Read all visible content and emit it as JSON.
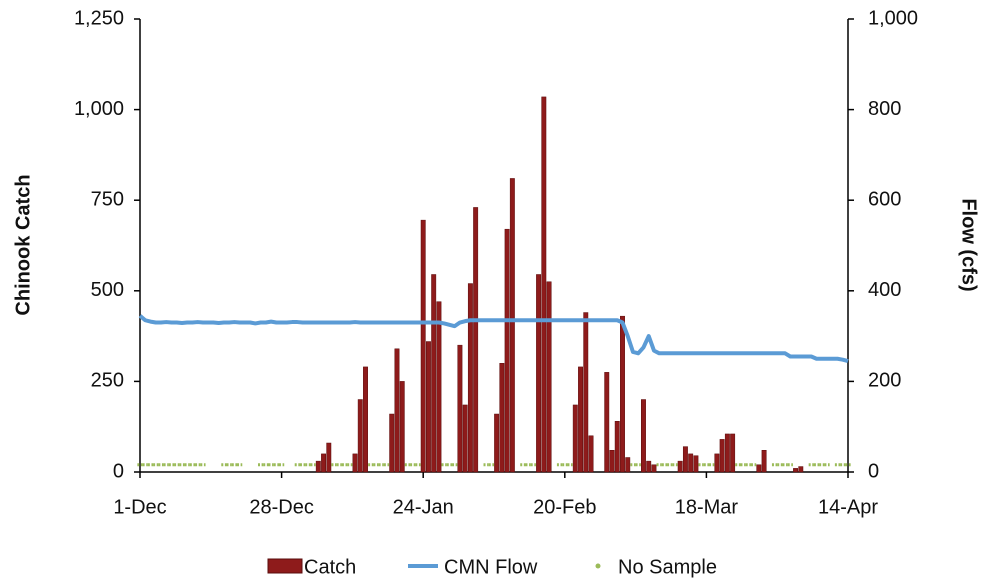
{
  "chart_data": {
    "type": "bar",
    "y_label": "Chinook Catch",
    "y2_label": "Flow (cfs)",
    "categories": [
      "1-Dec",
      null,
      null,
      null,
      null,
      null,
      null,
      null,
      null,
      null,
      null,
      null,
      null,
      null,
      null,
      null,
      null,
      null,
      null,
      null,
      null,
      null,
      null,
      null,
      null,
      null,
      null,
      "28-Dec",
      null,
      null,
      null,
      null,
      null,
      null,
      null,
      null,
      null,
      null,
      null,
      null,
      null,
      null,
      null,
      null,
      null,
      null,
      null,
      null,
      null,
      null,
      null,
      null,
      null,
      null,
      "24-Jan",
      null,
      null,
      null,
      null,
      null,
      null,
      null,
      null,
      null,
      null,
      null,
      null,
      null,
      null,
      null,
      null,
      null,
      null,
      null,
      null,
      null,
      null,
      null,
      null,
      null,
      null,
      "20-Feb",
      null,
      null,
      null,
      null,
      null,
      null,
      null,
      null,
      null,
      null,
      null,
      null,
      null,
      null,
      null,
      null,
      null,
      null,
      null,
      null,
      null,
      null,
      null,
      null,
      null,
      null,
      "18-Mar",
      null,
      null,
      null,
      null,
      null,
      null,
      null,
      null,
      null,
      null,
      null,
      null,
      null,
      null,
      null,
      null,
      null,
      null,
      null,
      null,
      null,
      null,
      null,
      null,
      null,
      null,
      "14-Apr"
    ],
    "series": [
      {
        "name": "Catch",
        "type": "bar",
        "color": "#8e1b1b",
        "values": [
          0,
          0,
          0,
          0,
          0,
          0,
          0,
          0,
          0,
          0,
          0,
          0,
          0,
          0,
          0,
          0,
          0,
          0,
          0,
          0,
          0,
          0,
          0,
          0,
          0,
          0,
          0,
          0,
          0,
          0,
          0,
          0,
          0,
          0,
          30,
          50,
          80,
          0,
          0,
          0,
          0,
          50,
          200,
          290,
          0,
          0,
          0,
          0,
          160,
          340,
          250,
          0,
          0,
          0,
          695,
          360,
          545,
          470,
          0,
          0,
          0,
          350,
          185,
          520,
          730,
          0,
          0,
          0,
          160,
          300,
          670,
          810,
          0,
          0,
          0,
          0,
          545,
          1035,
          525,
          0,
          0,
          0,
          0,
          185,
          290,
          440,
          100,
          0,
          0,
          275,
          60,
          140,
          430,
          40,
          0,
          0,
          200,
          30,
          20,
          0,
          0,
          0,
          0,
          30,
          70,
          50,
          45,
          0,
          0,
          0,
          50,
          90,
          105,
          105,
          0,
          0,
          0,
          0,
          20,
          60,
          0,
          0,
          0,
          0,
          0,
          10,
          15,
          0,
          0,
          0,
          0,
          0,
          0,
          0,
          0,
          0
        ]
      },
      {
        "name": "CMN Flow",
        "type": "line",
        "axis": "y2",
        "color": "#5b9bd5",
        "values": [
          345,
          335,
          332,
          330,
          330,
          331,
          330,
          330,
          329,
          330,
          330,
          331,
          330,
          330,
          330,
          329,
          330,
          330,
          331,
          330,
          330,
          330,
          328,
          330,
          330,
          332,
          330,
          330,
          330,
          331,
          331,
          330,
          330,
          330,
          330,
          330,
          330,
          330,
          330,
          330,
          330,
          331,
          330,
          330,
          330,
          330,
          330,
          330,
          330,
          330,
          330,
          330,
          330,
          330,
          330,
          330,
          330,
          330,
          328,
          325,
          322,
          330,
          333,
          335,
          335,
          335,
          335,
          335,
          335,
          335,
          335,
          335,
          335,
          335,
          335,
          335,
          335,
          335,
          335,
          335,
          335,
          335,
          335,
          335,
          335,
          335,
          335,
          335,
          335,
          335,
          335,
          335,
          330,
          300,
          265,
          262,
          275,
          300,
          268,
          262,
          262,
          262,
          262,
          262,
          262,
          262,
          262,
          262,
          262,
          262,
          262,
          262,
          262,
          262,
          262,
          262,
          262,
          262,
          262,
          262,
          262,
          262,
          262,
          262,
          255,
          255,
          255,
          255,
          255,
          250,
          250,
          250,
          250,
          250,
          248,
          245
        ]
      },
      {
        "name": "No Sample",
        "type": "dots",
        "color": "#9bbb59",
        "values": [
          20,
          20,
          20,
          20,
          20,
          20,
          20,
          20,
          20,
          20,
          20,
          20,
          20,
          null,
          null,
          null,
          20,
          20,
          20,
          20,
          null,
          null,
          null,
          20,
          20,
          20,
          20,
          20,
          null,
          null,
          20,
          20,
          20,
          20,
          null,
          null,
          null,
          20,
          20,
          20,
          20,
          null,
          null,
          null,
          20,
          20,
          20,
          20,
          null,
          null,
          null,
          20,
          20,
          20,
          null,
          null,
          null,
          null,
          20,
          20,
          20,
          null,
          null,
          null,
          null,
          null,
          20,
          20,
          null,
          null,
          null,
          null,
          null,
          20,
          20,
          20,
          null,
          null,
          null,
          null,
          20,
          20,
          20,
          null,
          null,
          null,
          null,
          null,
          null,
          null,
          null,
          null,
          null,
          null,
          20,
          20,
          null,
          null,
          null,
          20,
          20,
          20,
          20,
          null,
          null,
          null,
          null,
          20,
          20,
          20,
          null,
          null,
          null,
          null,
          20,
          20,
          20,
          20,
          null,
          null,
          null,
          20,
          20,
          20,
          20,
          null,
          null,
          null,
          20,
          20,
          20,
          20,
          null,
          20,
          20,
          20
        ]
      }
    ],
    "ylim": [
      0,
      1250
    ],
    "yticks": [
      0,
      250,
      500,
      750,
      {
        "value": 1000,
        "label": "1,000"
      },
      {
        "value": 1250,
        "label": "1,250"
      }
    ],
    "y2lim": [
      0,
      1000
    ],
    "y2ticks": [
      0,
      200,
      400,
      600,
      800,
      {
        "value": 1000,
        "label": "1,000"
      }
    ],
    "legend": "bottom"
  }
}
